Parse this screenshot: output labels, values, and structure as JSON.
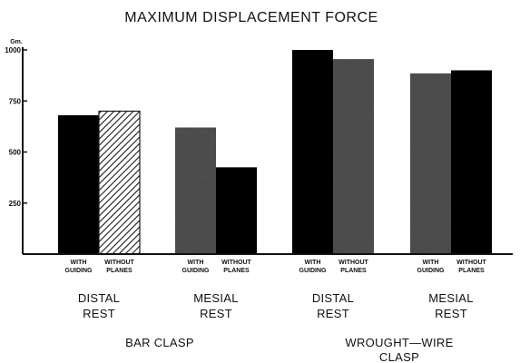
{
  "chart_data": {
    "type": "bar",
    "title": "MAXIMUM DISPLACEMENT FORCE",
    "y_unit": "Gm.",
    "ylim": [
      0,
      1000
    ],
    "yticks": [
      "250",
      "500",
      "750",
      "1000"
    ],
    "ytick_values": [
      250,
      500,
      750,
      1000
    ],
    "grid": false,
    "bar_labels": [
      [
        "WITH",
        "GUIDING"
      ],
      [
        "WITHOUT",
        "PLANES"
      ]
    ],
    "groups": [
      {
        "label": [
          "DISTAL",
          "REST"
        ],
        "clasp": "bar",
        "values": [
          680,
          700
        ]
      },
      {
        "label": [
          "MESIAL",
          "REST"
        ],
        "clasp": "bar",
        "values": [
          620,
          425
        ]
      },
      {
        "label": [
          "DISTAL",
          "REST"
        ],
        "clasp": "wrought",
        "values": [
          1000,
          955
        ]
      },
      {
        "label": [
          "MESIAL",
          "REST"
        ],
        "clasp": "wrought",
        "values": [
          885,
          900
        ]
      }
    ],
    "clasp_labels": {
      "bar": [
        "BAR CLASP"
      ],
      "wrought": [
        "WROUGHT—WIRE",
        "CLASP"
      ]
    },
    "colors": {
      "solid": "#0a0a0a",
      "stipple": "#5a5a5a",
      "hatch": "#1a1a1a"
    }
  }
}
